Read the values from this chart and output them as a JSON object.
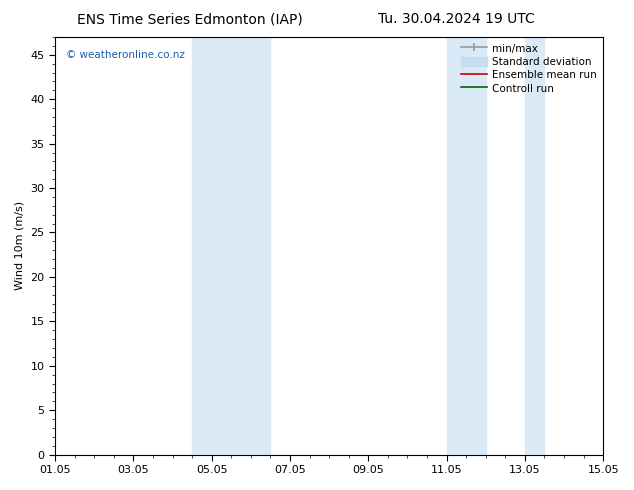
{
  "title_left": "ENS Time Series Edmonton (IAP)",
  "title_right": "Tu. 30.04.2024 19 UTC",
  "ylabel": "Wind 10m (m/s)",
  "ylim": [
    0,
    47
  ],
  "yticks": [
    0,
    5,
    10,
    15,
    20,
    25,
    30,
    35,
    40,
    45
  ],
  "xlim": [
    0,
    14
  ],
  "xtick_labels": [
    "01.05",
    "03.05",
    "05.05",
    "07.05",
    "09.05",
    "11.05",
    "13.05",
    "15.05"
  ],
  "xtick_positions": [
    0,
    2,
    4,
    6,
    8,
    10,
    12,
    14
  ],
  "shaded_bands": [
    {
      "x_start": 3.5,
      "x_end": 5.5,
      "color": "#daeaf7"
    },
    {
      "x_start": 10.0,
      "x_end": 11.0,
      "color": "#daeaf7"
    },
    {
      "x_start": 12.0,
      "x_end": 12.5,
      "color": "#daeaf7"
    }
  ],
  "legend_entries": [
    {
      "label": "min/max",
      "color": "#999999",
      "linestyle": "-",
      "linewidth": 1.2
    },
    {
      "label": "Standard deviation",
      "color": "#c8dcf0",
      "linestyle": "-",
      "linewidth": 7
    },
    {
      "label": "Ensemble mean run",
      "color": "#cc0000",
      "linestyle": "-",
      "linewidth": 1.2
    },
    {
      "label": "Controll run",
      "color": "#006600",
      "linestyle": "-",
      "linewidth": 1.2
    }
  ],
  "watermark_text": "© weatheronline.co.nz",
  "watermark_color": "#1a5faa",
  "bg_color": "#ffffff",
  "plot_bg_color": "#ffffff",
  "title_fontsize": 10,
  "axis_fontsize": 8,
  "tick_fontsize": 8,
  "legend_fontsize": 7.5
}
